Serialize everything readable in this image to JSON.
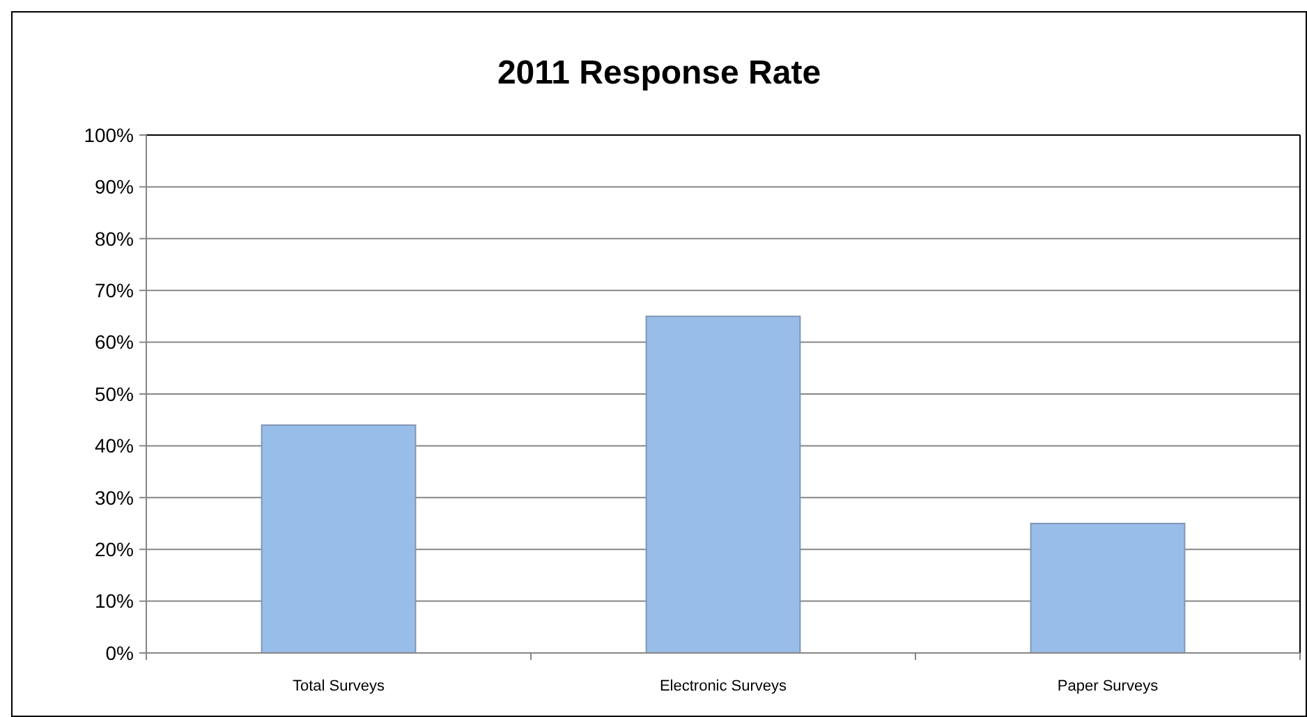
{
  "chart_data": {
    "type": "bar",
    "title": "2011 Response Rate",
    "categories": [
      "Total Surveys",
      "Electronic Surveys",
      "Paper Surveys"
    ],
    "values": [
      44,
      65,
      25
    ],
    "color": "#99bde9",
    "ylim": [
      0,
      100
    ],
    "yticks": [
      {
        "value": 0,
        "label": "0%"
      },
      {
        "value": 10,
        "label": "10%"
      },
      {
        "value": 20,
        "label": "20%"
      },
      {
        "value": 30,
        "label": "30%"
      },
      {
        "value": 40,
        "label": "40%"
      },
      {
        "value": 50,
        "label": "50%"
      },
      {
        "value": 60,
        "label": "60%"
      },
      {
        "value": 70,
        "label": "70%"
      },
      {
        "value": 80,
        "label": "80%"
      },
      {
        "value": 90,
        "label": "90%"
      },
      {
        "value": 100,
        "label": "100%"
      }
    ],
    "grid": "y"
  }
}
